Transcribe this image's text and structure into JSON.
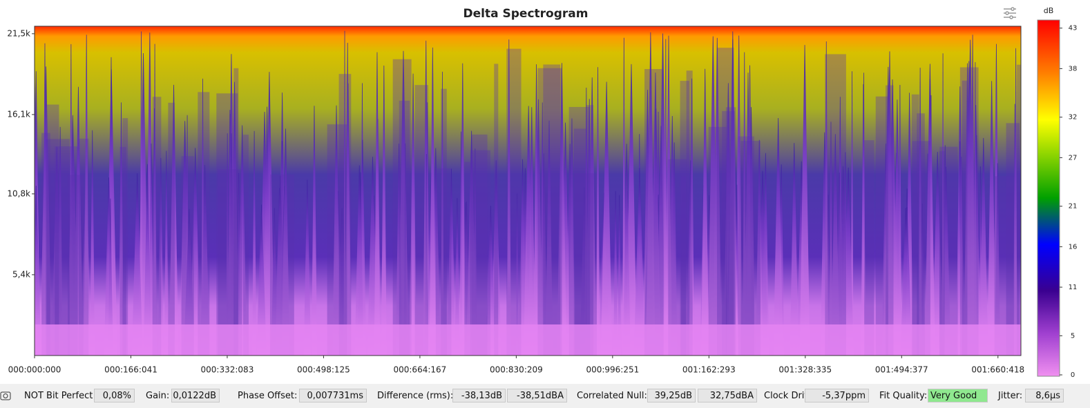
{
  "chart_data": {
    "type": "spectrogram",
    "title": "Delta Spectrogram",
    "xlim": [
      0,
      1700
    ],
    "xticks": [
      {
        "value": 0,
        "label": "000:000:000"
      },
      {
        "value": 166.041,
        "label": "000:166:041"
      },
      {
        "value": 332.083,
        "label": "000:332:083"
      },
      {
        "value": 498.125,
        "label": "000:498:125"
      },
      {
        "value": 664.167,
        "label": "000:664:167"
      },
      {
        "value": 830.209,
        "label": "000:830:209"
      },
      {
        "value": 996.251,
        "label": "000:996:251"
      },
      {
        "value": 1162.293,
        "label": "001:162:293"
      },
      {
        "value": 1328.335,
        "label": "001:328:335"
      },
      {
        "value": 1494.377,
        "label": "001:494:377"
      },
      {
        "value": 1660.418,
        "label": "001:660:418"
      }
    ],
    "ylim": [
      0,
      22000
    ],
    "yticks": [
      {
        "value": 5400,
        "label": "5,4k"
      },
      {
        "value": 10800,
        "label": "10,8k"
      },
      {
        "value": 16100,
        "label": "16,1k"
      },
      {
        "value": 21500,
        "label": "21,5k"
      }
    ],
    "colorbar": {
      "label": "dB",
      "clim": [
        0,
        44
      ],
      "ticks": [
        0,
        5,
        11,
        16,
        21,
        27,
        32,
        38,
        43
      ]
    }
  },
  "status_bar": {
    "bit_perfect": {
      "label": "NOT Bit Perfect",
      "value": "0,08%"
    },
    "gain": {
      "label": "Gain:",
      "value": "0,0122dB"
    },
    "phase_offset": {
      "label": "Phase Offset:",
      "value": "0,007731ms"
    },
    "difference": {
      "label": "Difference (rms):",
      "values": [
        "-38,13dB",
        "-38,51dBA"
      ]
    },
    "correlated_null": {
      "label": "Correlated Null:",
      "values": [
        "39,25dB",
        "32,75dBA"
      ]
    },
    "clock_drift": {
      "label": "Clock Drift:",
      "value": "-5,37ppm"
    },
    "fit_quality": {
      "label": "Fit Quality:",
      "value": "Very Good"
    },
    "jitter": {
      "label": "Jitter:",
      "value": "8,6µs"
    }
  }
}
